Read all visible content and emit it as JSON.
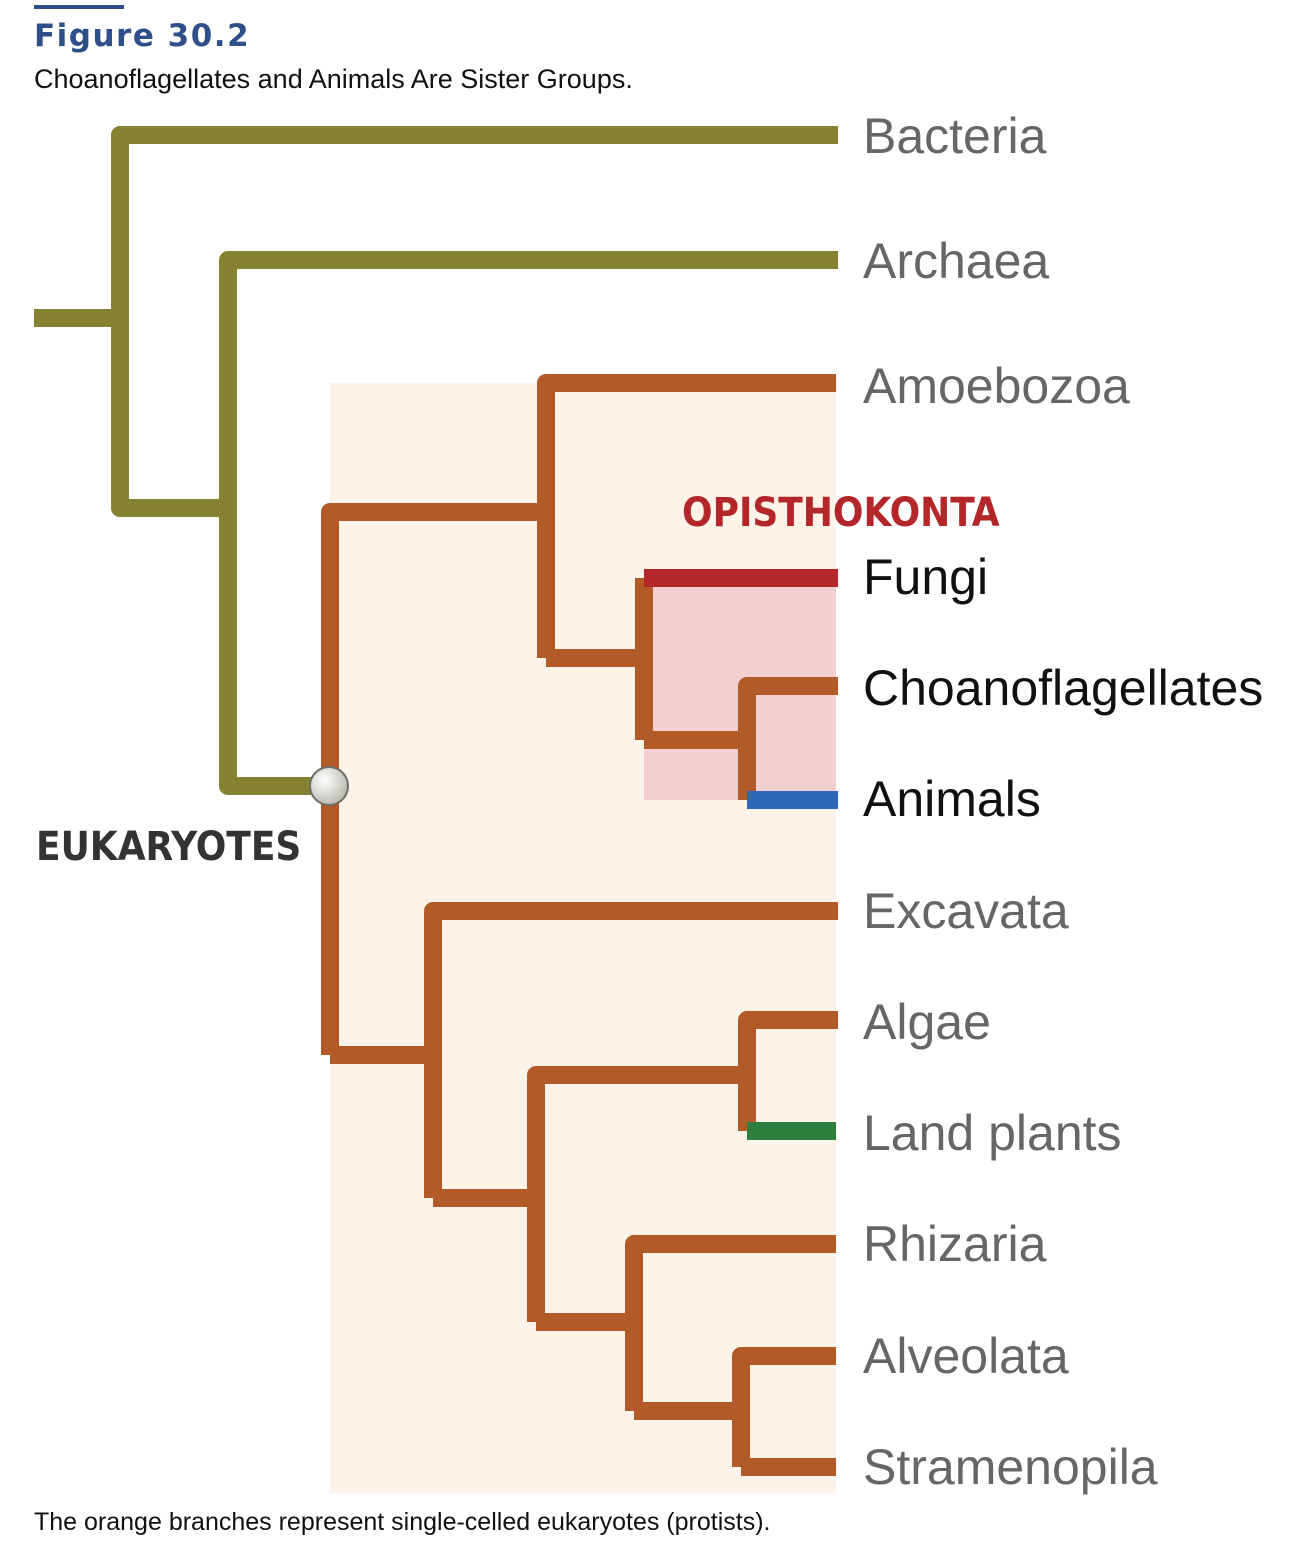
{
  "figure": {
    "label": "Figure 30.2",
    "title": "Choanoflagellates and Animals Are Sister Groups.",
    "caption": "The orange branches represent single-celled eukaryotes (protists)."
  },
  "tree": {
    "group_labels": {
      "eukaryotes": "EUKARYOTES",
      "opisthokonta": "OPISTHOKONTA"
    },
    "taxa": {
      "bacteria": "Bacteria",
      "archaea": "Archaea",
      "amoebozoa": "Amoebozoa",
      "fungi": "Fungi",
      "choanoflagellates": "Choanoflagellates",
      "animals": "Animals",
      "excavata": "Excavata",
      "algae": "Algae",
      "land_plants": "Land plants",
      "rhizaria": "Rhizaria",
      "alveolata": "Alveolata",
      "stramenopila": "Stramenopila"
    },
    "colors": {
      "olive_branch": "#868232",
      "orange_branch": "#b35b28",
      "fungi_branch": "#b3262a",
      "animals_branch": "#2f66b5",
      "land_plants_branch": "#2e7f3e",
      "eukaryote_shade": "#fdf3e8",
      "opisthokont_shade": "#f2cfd0",
      "opisthokonta_label": "#b3262a",
      "eukaryotes_label": "#333333",
      "highlight_taxon_text": "#111111",
      "other_taxon_text": "#666666"
    }
  }
}
